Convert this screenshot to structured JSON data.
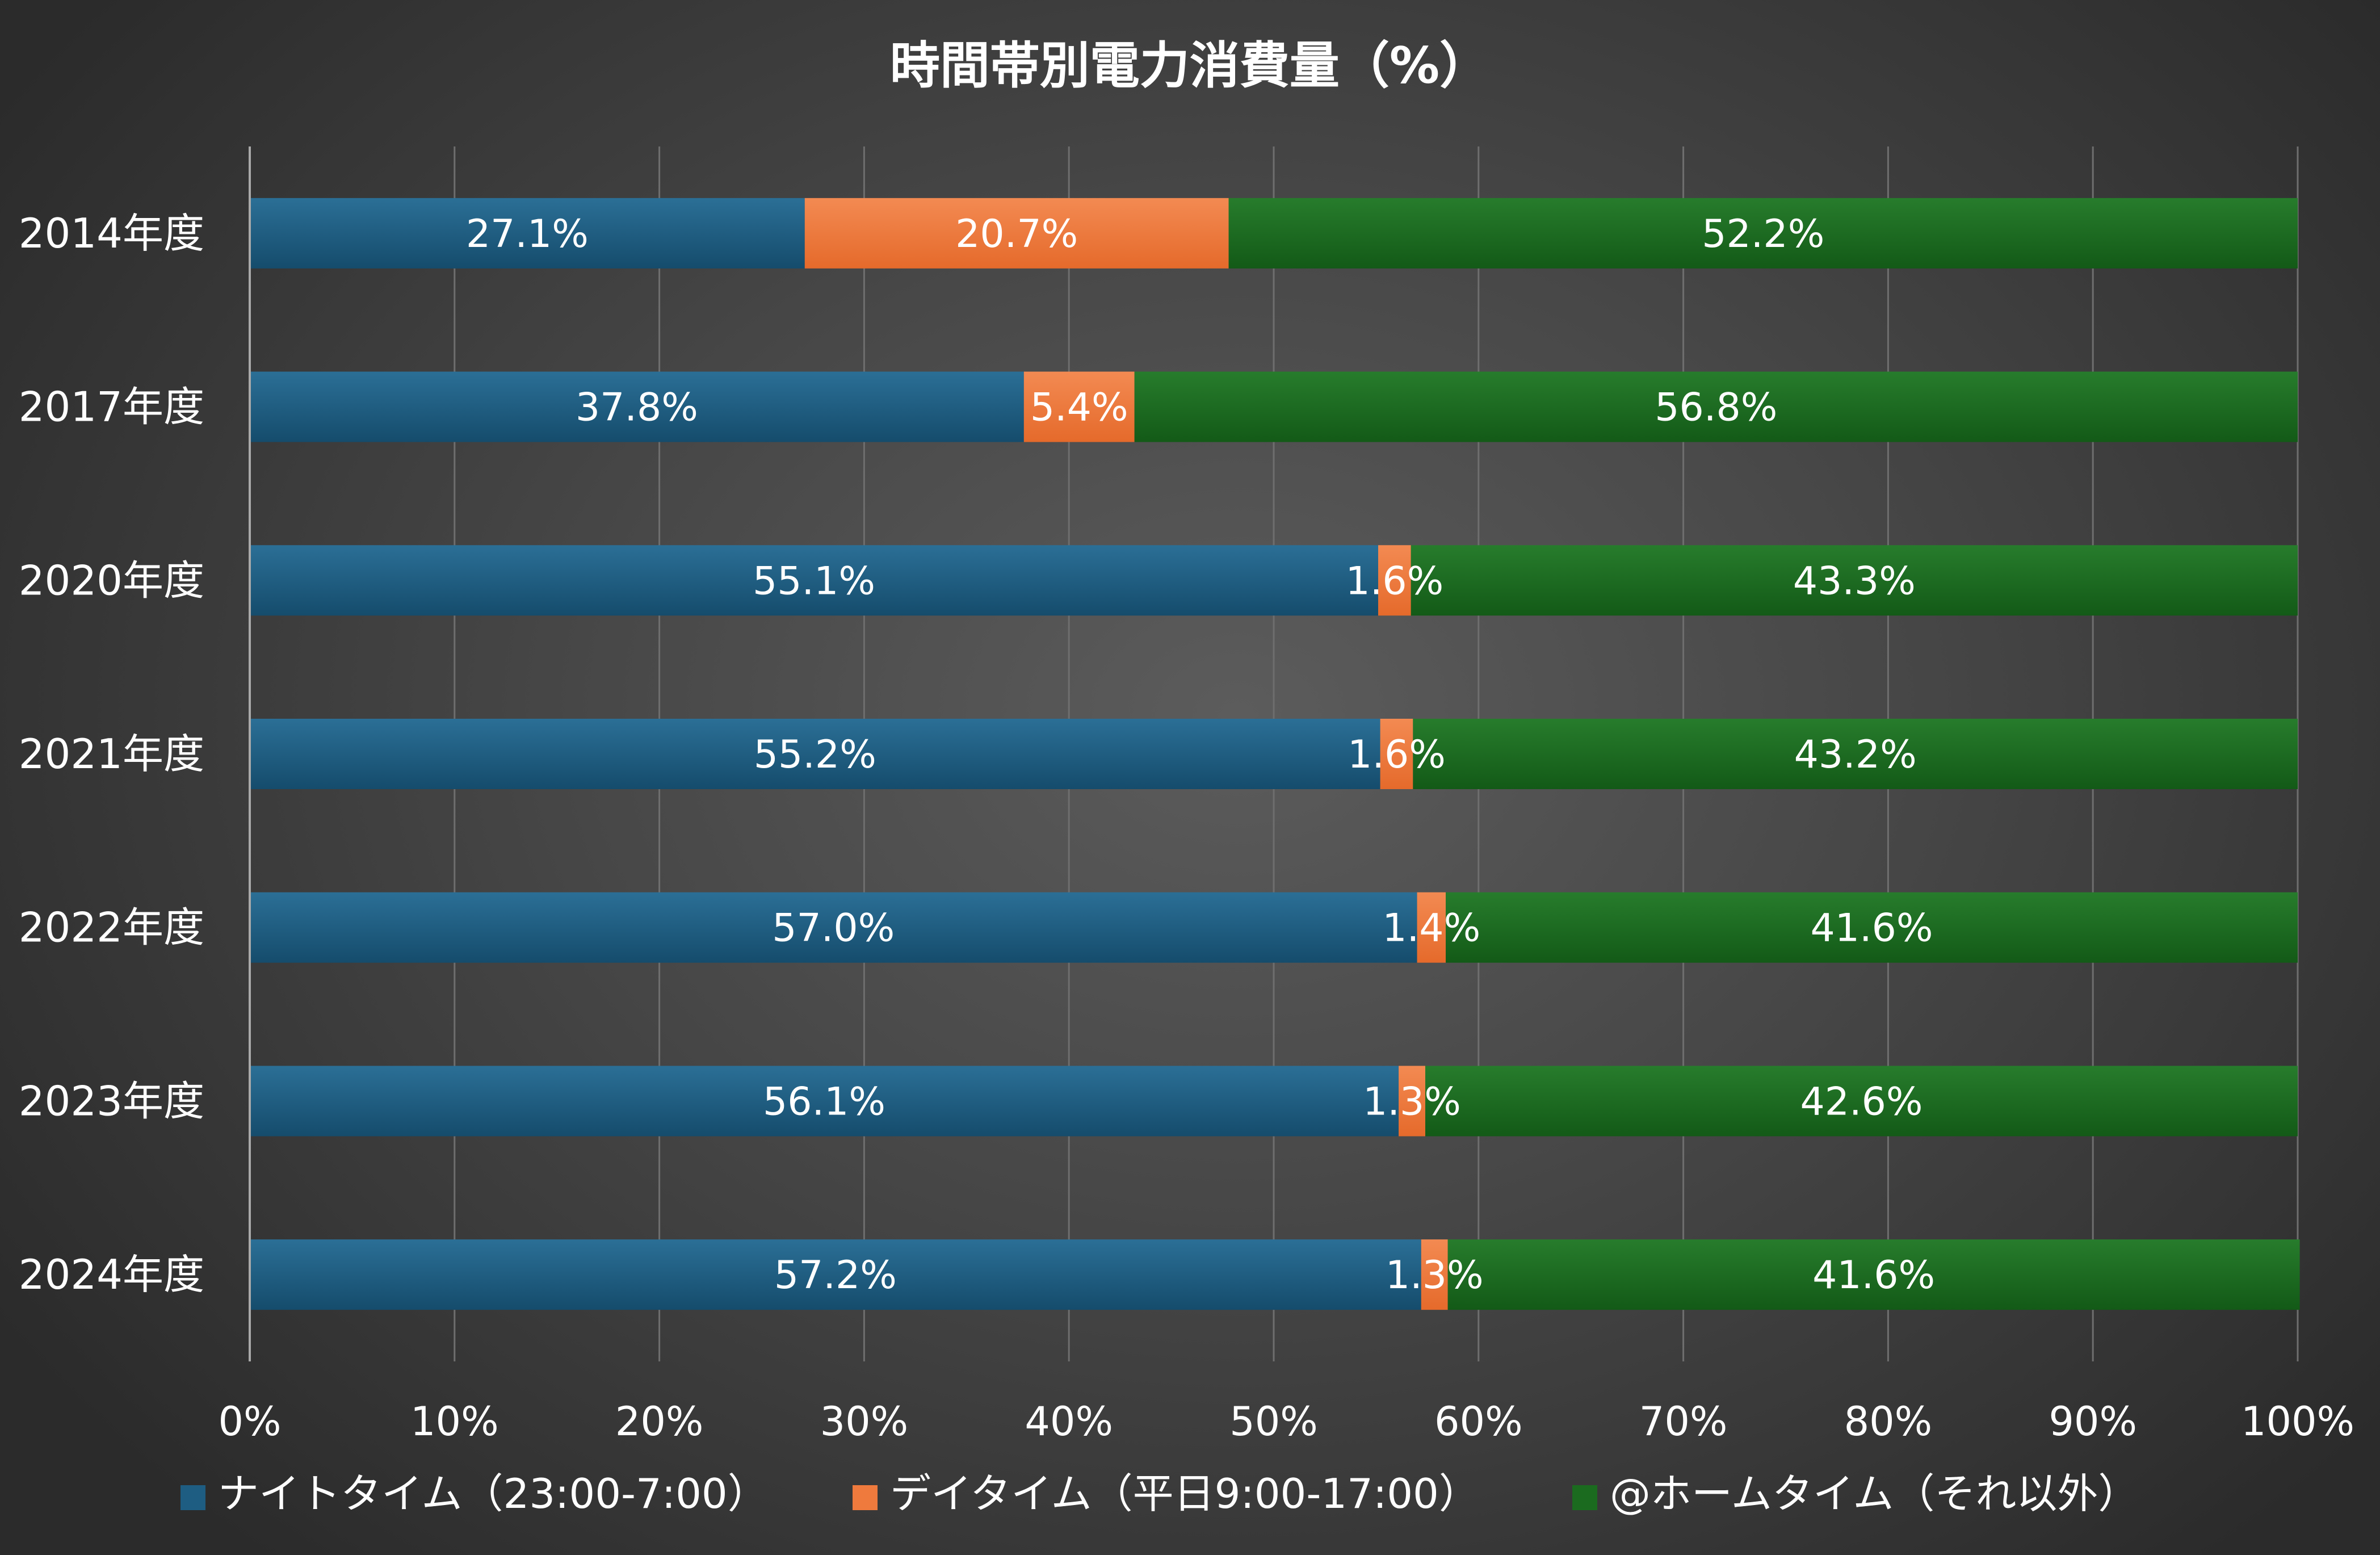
{
  "chart_data": {
    "type": "bar",
    "orientation": "horizontal",
    "stacked": "percent",
    "title": "時間帯別電力消費量（%）",
    "categories": [
      "2014年度",
      "2017年度",
      "2020年度",
      "2021年度",
      "2022年度",
      "2023年度",
      "2024年度"
    ],
    "series": [
      {
        "name": "ナイトタイム（23:00-7:00）",
        "color": "#1e5d82",
        "values": [
          27.1,
          37.8,
          55.1,
          55.2,
          57.0,
          56.1,
          57.2
        ],
        "labels": [
          "27.1%",
          "37.8%",
          "55.1%",
          "55.2%",
          "57.0%",
          "56.1%",
          "57.2%"
        ]
      },
      {
        "name": "デイタイム（平日9:00-17:00）",
        "color": "#ef7a3d",
        "values": [
          20.7,
          5.4,
          1.6,
          1.6,
          1.4,
          1.3,
          1.3
        ],
        "labels": [
          "20.7%",
          "5.4%",
          "1.6%",
          "1.6%",
          "1.4%",
          "1.3%",
          "1.3%"
        ]
      },
      {
        "name": "@ホームタイム（それ以外）",
        "color": "#1b6b1f",
        "values": [
          52.2,
          56.8,
          43.3,
          43.2,
          41.6,
          42.6,
          41.6
        ],
        "labels": [
          "52.2%",
          "56.8%",
          "43.3%",
          "43.2%",
          "41.6%",
          "42.6%",
          "41.6%"
        ]
      }
    ],
    "xlim": [
      0,
      100
    ],
    "xticks": [
      "0%",
      "10%",
      "20%",
      "30%",
      "40%",
      "50%",
      "60%",
      "70%",
      "80%",
      "90%",
      "100%"
    ],
    "grid": "vertical",
    "legend": "bottom",
    "background": "#3f3f3f"
  }
}
